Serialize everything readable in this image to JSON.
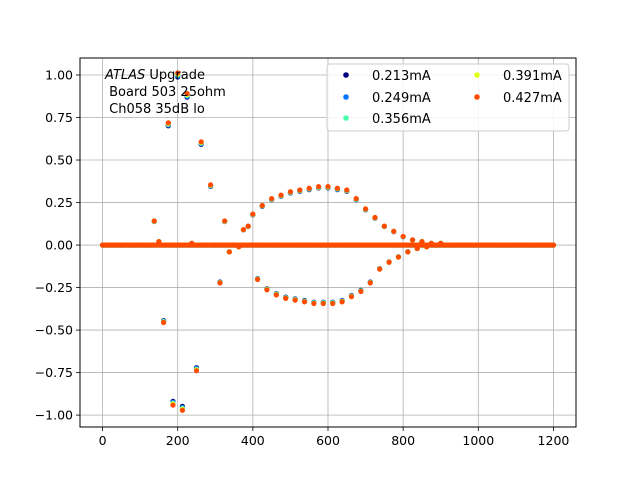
{
  "chart_data": {
    "type": "scatter",
    "title": "",
    "xlabel": "",
    "ylabel": "",
    "xlim": [
      -60,
      1260
    ],
    "ylim": [
      -1.07,
      1.1
    ],
    "xticks": [
      0,
      200,
      400,
      600,
      800,
      1000,
      1200
    ],
    "yticks": [
      -1.0,
      -0.75,
      -0.5,
      -0.25,
      0.0,
      0.25,
      0.5,
      0.75,
      1.0
    ],
    "xtick_labels": [
      "0",
      "200",
      "400",
      "600",
      "800",
      "1000",
      "1200"
    ],
    "ytick_labels": [
      "−1.00",
      "−0.75",
      "−0.50",
      "−0.25",
      "0.00",
      "0.25",
      "0.50",
      "0.75",
      "1.00"
    ],
    "grid": true,
    "legend_position": "top-right",
    "legend_columns": 2,
    "annotation": {
      "italic": "ATLAS",
      "rest": " Upgrade",
      "line2": " Board 503 25ohm",
      "line3": " Ch058 35dB lo"
    },
    "series": [
      {
        "name": "0.213mA",
        "color": "#00007f"
      },
      {
        "name": "0.249mA",
        "color": "#0074ff"
      },
      {
        "name": "0.356mA",
        "color": "#4cffaa"
      },
      {
        "name": "0.391mA",
        "color": "#e0ff1a"
      },
      {
        "name": "0.427mA",
        "color": "#ff4a00"
      }
    ],
    "pulse": {
      "sample_spacing": 12.5,
      "points": [
        [
          0,
          0.0
        ],
        [
          12.5,
          0.0
        ],
        [
          25,
          0.0
        ],
        [
          37.5,
          0.0
        ],
        [
          50,
          0.0
        ],
        [
          62.5,
          0.0
        ],
        [
          75,
          0.0
        ],
        [
          87.5,
          0.0
        ],
        [
          100,
          0.0
        ],
        [
          112.5,
          0.0
        ],
        [
          125,
          0.0
        ],
        [
          137.5,
          0.14
        ],
        [
          150,
          0.02
        ],
        [
          162.5,
          -0.45
        ],
        [
          175,
          0.71
        ],
        [
          187.5,
          -0.93
        ],
        [
          200,
          1.0
        ],
        [
          212.5,
          -0.96
        ],
        [
          225,
          0.88
        ],
        [
          237.5,
          0.01
        ],
        [
          250,
          -0.73
        ],
        [
          262.5,
          0.6
        ],
        [
          275,
          0.0
        ],
        [
          287.5,
          0.35
        ],
        [
          300,
          0.0
        ],
        [
          312.5,
          -0.22
        ],
        [
          325,
          0.14
        ],
        [
          337.5,
          -0.04
        ],
        [
          350,
          0.0
        ],
        [
          362.5,
          -0.01
        ],
        [
          375,
          0.09
        ],
        [
          387.5,
          0.11
        ],
        [
          400,
          0.18
        ],
        [
          412.5,
          -0.2
        ],
        [
          425,
          0.23
        ],
        [
          437.5,
          -0.26
        ],
        [
          450,
          0.27
        ],
        [
          462.5,
          -0.29
        ],
        [
          475,
          0.29
        ],
        [
          487.5,
          -0.31
        ],
        [
          500,
          0.31
        ],
        [
          512.5,
          -0.32
        ],
        [
          525,
          0.32
        ],
        [
          537.5,
          -0.33
        ],
        [
          550,
          0.33
        ],
        [
          562.5,
          -0.34
        ],
        [
          575,
          0.34
        ],
        [
          587.5,
          -0.34
        ],
        [
          600,
          0.34
        ],
        [
          612.5,
          -0.34
        ],
        [
          625,
          0.33
        ],
        [
          637.5,
          -0.33
        ],
        [
          650,
          0.32
        ],
        [
          662.5,
          -0.3
        ],
        [
          675,
          0.27
        ],
        [
          687.5,
          -0.27
        ],
        [
          700,
          0.21
        ],
        [
          712.5,
          -0.22
        ],
        [
          725,
          0.16
        ],
        [
          737.5,
          -0.14
        ],
        [
          750,
          0.11
        ],
        [
          762.5,
          -0.1
        ],
        [
          775,
          0.08
        ],
        [
          787.5,
          -0.07
        ],
        [
          800,
          0.05
        ],
        [
          812.5,
          -0.04
        ],
        [
          825,
          0.03
        ],
        [
          837.5,
          -0.02
        ],
        [
          850,
          0.02
        ],
        [
          862.5,
          -0.01
        ],
        [
          875,
          0.01
        ],
        [
          887.5,
          0.0
        ],
        [
          900,
          0.01
        ],
        [
          912.5,
          0.0
        ],
        [
          925,
          0.0
        ],
        [
          937.5,
          0.0
        ],
        [
          950,
          0.0
        ],
        [
          962.5,
          0.0
        ],
        [
          975,
          0.0
        ],
        [
          987.5,
          0.0
        ],
        [
          1000,
          0.0
        ],
        [
          1012.5,
          0.0
        ],
        [
          1025,
          0.0
        ],
        [
          1037.5,
          0.0
        ],
        [
          1050,
          0.0
        ],
        [
          1062.5,
          0.0
        ],
        [
          1075,
          0.0
        ],
        [
          1087.5,
          0.0
        ],
        [
          1100,
          0.0
        ],
        [
          1112.5,
          0.0
        ],
        [
          1125,
          0.0
        ],
        [
          1137.5,
          0.0
        ],
        [
          1150,
          0.0
        ],
        [
          1162.5,
          0.0
        ],
        [
          1175,
          0.0
        ],
        [
          1187.5,
          0.0
        ],
        [
          1200,
          0.0
        ]
      ]
    }
  }
}
